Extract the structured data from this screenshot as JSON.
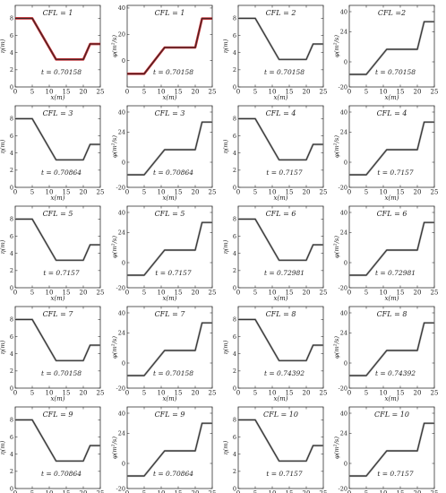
{
  "figure": {
    "curves": {
      "eta": [
        [
          0,
          8
        ],
        [
          5,
          8
        ],
        [
          12,
          3.2
        ],
        [
          20,
          3.2
        ],
        [
          22,
          5
        ],
        [
          25,
          5
        ]
      ],
      "q": [
        [
          0,
          -10
        ],
        [
          5,
          -10
        ],
        [
          11,
          10
        ],
        [
          20,
          10
        ],
        [
          22,
          32
        ],
        [
          25,
          32
        ]
      ]
    },
    "colors": {
      "numerical": "#262626",
      "highlight": "#c0282d"
    }
  },
  "chart_data": [
    {
      "type": "line",
      "variable": "eta",
      "title": "CFL = 1",
      "time_label": "t = 0.70158",
      "xlabel": "x(m)",
      "ylabel": "η(m)",
      "xlim": [
        0,
        25
      ],
      "ylim": [
        0,
        9.5
      ],
      "xticks": [
        "0",
        "5",
        "10",
        "15",
        "20",
        "25"
      ],
      "yticks": [
        "0",
        "2",
        "4",
        "6",
        "8"
      ],
      "highlight": true
    },
    {
      "type": "line",
      "variable": "q",
      "title": "CFL = 1",
      "time_label": "t = 0.70158",
      "xlabel": "x(m)",
      "ylabel": "φ(m²/s)",
      "xlim": [
        0,
        25
      ],
      "ylim": [
        -20,
        42
      ],
      "xticks": [
        "0",
        "5",
        "10",
        "15",
        "20",
        "25"
      ],
      "yticks": [
        "0",
        "20",
        "40"
      ],
      "highlight": true
    },
    {
      "type": "line",
      "variable": "eta",
      "title": "CFL = 2",
      "time_label": "t = 0.70158",
      "xlabel": "x(m)",
      "ylabel": "η(m)",
      "xlim": [
        0,
        25
      ],
      "ylim": [
        0,
        9.5
      ],
      "xticks": [
        "0",
        "5",
        "10",
        "15",
        "20",
        "25"
      ],
      "yticks": [
        "0",
        "2",
        "4",
        "6",
        "8"
      ],
      "highlight": false
    },
    {
      "type": "line",
      "variable": "q",
      "title": "CFL =2",
      "time_label": "t = 0.70158",
      "xlabel": "x(m)",
      "ylabel": "φ(m²/s)",
      "xlim": [
        0,
        25
      ],
      "ylim": [
        -20,
        45
      ],
      "xticks": [
        "0",
        "5",
        "10",
        "15",
        "20",
        "25"
      ],
      "yticks": [
        "-20",
        "0",
        "24",
        "40"
      ],
      "highlight": false
    },
    {
      "type": "line",
      "variable": "eta",
      "title": "CFL = 3",
      "time_label": "t = 0.70864",
      "xlabel": "x(m)",
      "ylabel": "η(m)",
      "xlim": [
        0,
        25
      ],
      "ylim": [
        0,
        9.5
      ],
      "xticks": [
        "0",
        "5",
        "10",
        "15",
        "20",
        "25"
      ],
      "yticks": [
        "0",
        "2",
        "4",
        "6",
        "8"
      ],
      "highlight": false
    },
    {
      "type": "line",
      "variable": "q",
      "title": "CFL = 3",
      "time_label": "t = 0.70864",
      "xlabel": "x(m)",
      "ylabel": "φ(m²/s)",
      "xlim": [
        0,
        25
      ],
      "ylim": [
        -20,
        45
      ],
      "xticks": [
        "0",
        "5",
        "10",
        "15",
        "20",
        "25"
      ],
      "yticks": [
        "-20",
        "0",
        "24",
        "40"
      ],
      "highlight": false
    },
    {
      "type": "line",
      "variable": "eta",
      "title": "CFL = 4",
      "time_label": "t = 0.7157",
      "xlabel": "x(m)",
      "ylabel": "η(m)",
      "xlim": [
        0,
        25
      ],
      "ylim": [
        0,
        9.5
      ],
      "xticks": [
        "0",
        "5",
        "10",
        "15",
        "20",
        "25"
      ],
      "yticks": [
        "0",
        "2",
        "4",
        "6",
        "8"
      ],
      "highlight": false
    },
    {
      "type": "line",
      "variable": "q",
      "title": "CFL = 4",
      "time_label": "t = 0.7157",
      "xlabel": "x(m)",
      "ylabel": "φ(m²/s)",
      "xlim": [
        0,
        25
      ],
      "ylim": [
        -20,
        45
      ],
      "xticks": [
        "0",
        "5",
        "10",
        "15",
        "20",
        "25"
      ],
      "yticks": [
        "-20",
        "0",
        "24",
        "40"
      ],
      "highlight": false
    },
    {
      "type": "line",
      "variable": "eta",
      "title": "CFL = 5",
      "time_label": "t = 0.7157",
      "xlabel": "x(m)",
      "ylabel": "η(m)",
      "xlim": [
        0,
        25
      ],
      "ylim": [
        0,
        9.5
      ],
      "xticks": [
        "0",
        "5",
        "10",
        "15",
        "20",
        "25"
      ],
      "yticks": [
        "0",
        "2",
        "4",
        "6",
        "8"
      ],
      "highlight": false
    },
    {
      "type": "line",
      "variable": "q",
      "title": "CFL = 5",
      "time_label": "t = 0.7157",
      "xlabel": "x(m)",
      "ylabel": "φ(m²/s)",
      "xlim": [
        0,
        25
      ],
      "ylim": [
        -20,
        45
      ],
      "xticks": [
        "0",
        "5",
        "10",
        "15",
        "20",
        "25"
      ],
      "yticks": [
        "-20",
        "0",
        "24",
        "40"
      ],
      "highlight": false
    },
    {
      "type": "line",
      "variable": "eta",
      "title": "CFL = 6",
      "time_label": "t = 0.72981",
      "xlabel": "x(m)",
      "ylabel": "η(m)",
      "xlim": [
        0,
        25
      ],
      "ylim": [
        0,
        9.5
      ],
      "xticks": [
        "0",
        "5",
        "10",
        "15",
        "20",
        "25"
      ],
      "yticks": [
        "0",
        "2",
        "4",
        "6",
        "8"
      ],
      "highlight": false
    },
    {
      "type": "line",
      "variable": "q",
      "title": "CFL = 6",
      "time_label": "t = 0.72981",
      "xlabel": "x(m)",
      "ylabel": "φ(m²/s)",
      "xlim": [
        0,
        25
      ],
      "ylim": [
        -20,
        45
      ],
      "xticks": [
        "0",
        "5",
        "10",
        "15",
        "20",
        "25"
      ],
      "yticks": [
        "-20",
        "0",
        "24",
        "40"
      ],
      "highlight": false
    },
    {
      "type": "line",
      "variable": "eta",
      "title": "CFL = 7",
      "time_label": "t = 0.70158",
      "xlabel": "x(m)",
      "ylabel": "η(m)",
      "xlim": [
        0,
        25
      ],
      "ylim": [
        0,
        9.5
      ],
      "xticks": [
        "0",
        "5",
        "10",
        "15",
        "20",
        "25"
      ],
      "yticks": [
        "0",
        "2",
        "4",
        "6",
        "8"
      ],
      "highlight": false
    },
    {
      "type": "line",
      "variable": "q",
      "title": "CFL = 7",
      "time_label": "t = 0.70158",
      "xlabel": "x(m)",
      "ylabel": "φ(m²/s)",
      "xlim": [
        0,
        25
      ],
      "ylim": [
        -20,
        45
      ],
      "xticks": [
        "0",
        "5",
        "10",
        "15",
        "20",
        "25"
      ],
      "yticks": [
        "-20",
        "0",
        "24",
        "40"
      ],
      "highlight": false
    },
    {
      "type": "line",
      "variable": "eta",
      "title": "CFL = 8",
      "time_label": "t = 0.74392",
      "xlabel": "x(m)",
      "ylabel": "η(m)",
      "xlim": [
        0,
        25
      ],
      "ylim": [
        0,
        9.5
      ],
      "xticks": [
        "0",
        "5",
        "10",
        "15",
        "20",
        "25"
      ],
      "yticks": [
        "0",
        "2",
        "4",
        "6",
        "8"
      ],
      "highlight": false
    },
    {
      "type": "line",
      "variable": "q",
      "title": "CFL = 8",
      "time_label": "t = 0.74392",
      "xlabel": "x(m)",
      "ylabel": "φ(m²/s)",
      "xlim": [
        0,
        25
      ],
      "ylim": [
        -20,
        45
      ],
      "xticks": [
        "0",
        "5",
        "10",
        "15",
        "20",
        "25"
      ],
      "yticks": [
        "-20",
        "0",
        "24",
        "40"
      ],
      "highlight": false
    },
    {
      "type": "line",
      "variable": "eta",
      "title": "CFL = 9",
      "time_label": "t = 0.70864",
      "xlabel": "x(m)",
      "ylabel": "η(m)",
      "xlim": [
        0,
        25
      ],
      "ylim": [
        0,
        9.5
      ],
      "xticks": [
        "0",
        "5",
        "10",
        "15",
        "20",
        "25"
      ],
      "yticks": [
        "0",
        "2",
        "4",
        "6",
        "8"
      ],
      "highlight": false
    },
    {
      "type": "line",
      "variable": "q",
      "title": "CFL = 9",
      "time_label": "t = 0.70864",
      "xlabel": "x(m)",
      "ylabel": "φ(m²/s)",
      "xlim": [
        0,
        25
      ],
      "ylim": [
        -20,
        45
      ],
      "xticks": [
        "0",
        "5",
        "10",
        "15",
        "20",
        "25"
      ],
      "yticks": [
        "-20",
        "0",
        "24",
        "40"
      ],
      "highlight": false
    },
    {
      "type": "line",
      "variable": "eta",
      "title": "CFL = 10",
      "time_label": "t = 0.7157",
      "xlabel": "x(m)",
      "ylabel": "η(m)",
      "xlim": [
        0,
        25
      ],
      "ylim": [
        0,
        9.5
      ],
      "xticks": [
        "0",
        "5",
        "10",
        "15",
        "20",
        "25"
      ],
      "yticks": [
        "0",
        "2",
        "4",
        "6",
        "8"
      ],
      "highlight": false
    },
    {
      "type": "line",
      "variable": "q",
      "title": "CFL = 10",
      "time_label": "t = 0.7157",
      "xlabel": "x(m)",
      "ylabel": "φ(m²/s)",
      "xlim": [
        0,
        25
      ],
      "ylim": [
        -20,
        45
      ],
      "xticks": [
        "0",
        "5",
        "10",
        "15",
        "20",
        "25"
      ],
      "yticks": [
        "-20",
        "0",
        "24",
        "40"
      ],
      "highlight": false
    }
  ]
}
